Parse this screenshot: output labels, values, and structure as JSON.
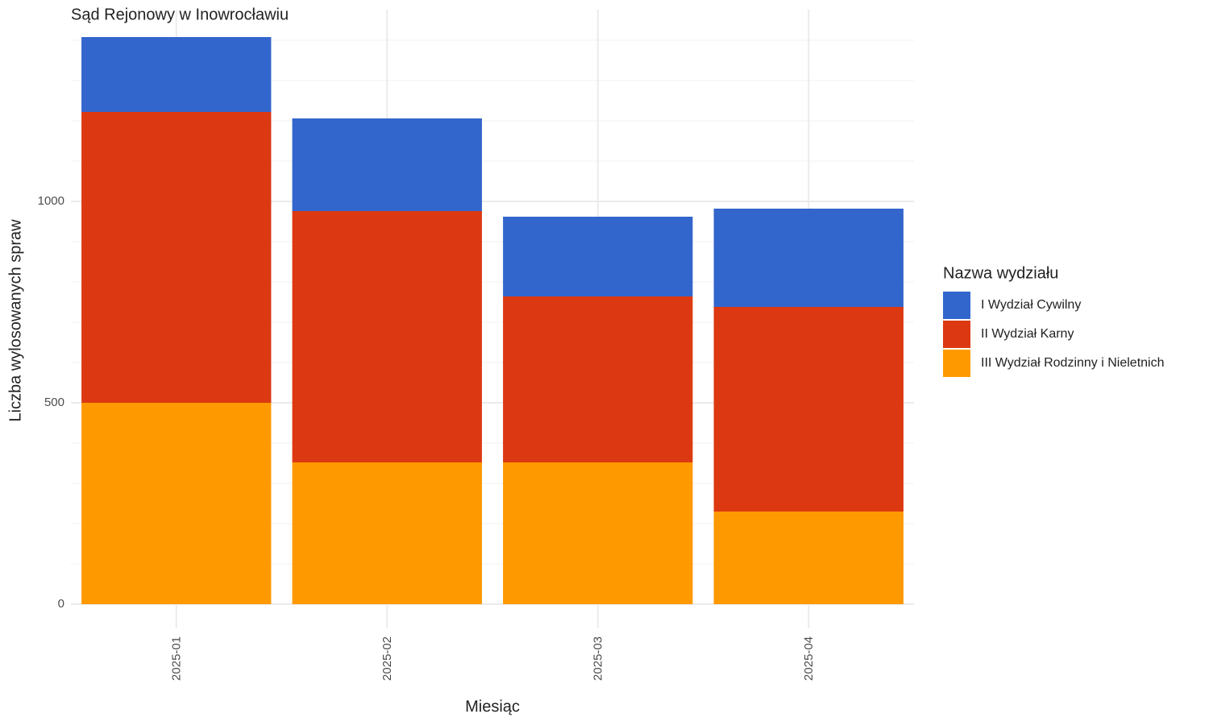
{
  "chart_data": {
    "type": "stacked_bar",
    "title": "Sąd Rejonowy w Inowrocławiu",
    "x_label": "Miesiąc",
    "y_label": "Liczba wylosowanych spraw",
    "legend_title": "Nazwa wydziału",
    "legend_position": "right",
    "categories": [
      "2025-01",
      "2025-02",
      "2025-03",
      "2025-04"
    ],
    "series": [
      {
        "name": "I Wydział Cywilny",
        "color": "#3366cc",
        "values": [
          186,
          230,
          198,
          244
        ]
      },
      {
        "name": "II Wydział Karny",
        "color": "#dc3912",
        "values": [
          722,
          624,
          412,
          508
        ]
      },
      {
        "name": "III Wydział Rodzinny i Nieletnich",
        "color": "#ff9900",
        "values": [
          500,
          352,
          352,
          230
        ]
      }
    ],
    "stack_order": "last_series_bottom",
    "ylim": [
      -60,
      1476
    ],
    "yticks": [
      0,
      500,
      1000
    ],
    "minor_yticks": [
      100,
      200,
      300,
      400,
      600,
      700,
      800,
      900,
      1100,
      1200,
      1300,
      1400
    ],
    "grid": true
  }
}
